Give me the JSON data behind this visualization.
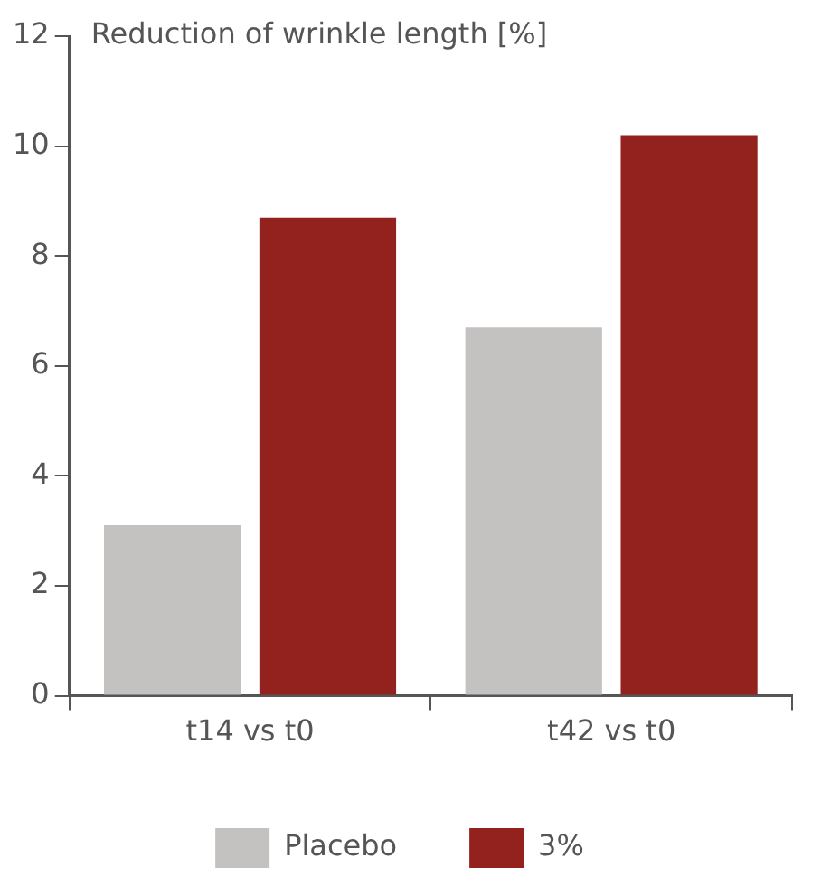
{
  "chart_data": {
    "type": "bar",
    "ylabel": "Reduction of wrinkle length [%]",
    "categories": [
      "t14 vs t0",
      "t42 vs t0"
    ],
    "series": [
      {
        "name": "Placebo",
        "color": "#c3c2c0",
        "values": [
          3.1,
          6.7
        ]
      },
      {
        "name": "3%",
        "color": "#93221f",
        "values": [
          8.7,
          10.2
        ]
      }
    ],
    "ylim": [
      0,
      12
    ],
    "yticks": [
      0,
      2,
      4,
      6,
      8,
      10,
      12
    ],
    "grid": false,
    "legend": "bottom"
  }
}
